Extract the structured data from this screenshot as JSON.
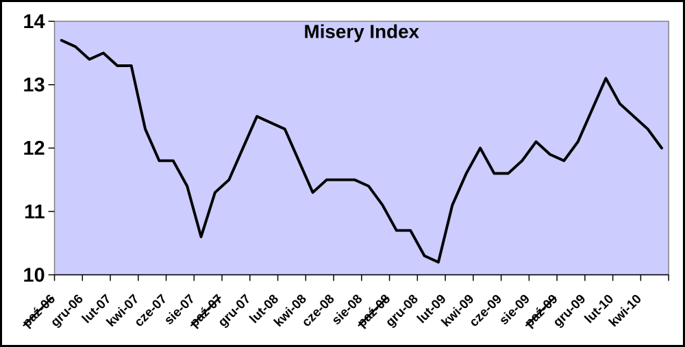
{
  "window": {
    "background_color": "#FFFFFF",
    "border_color": "#000000"
  },
  "chart_data": {
    "type": "line",
    "title": "Misery Index",
    "series_name": "Misery Index",
    "n_points": 44,
    "values": [
      13.7,
      13.6,
      13.4,
      13.5,
      13.3,
      13.3,
      12.3,
      11.8,
      11.8,
      11.4,
      10.6,
      11.3,
      11.5,
      12.0,
      12.5,
      12.4,
      12.3,
      11.8,
      11.3,
      11.5,
      11.5,
      11.5,
      11.4,
      11.1,
      10.7,
      10.7,
      10.3,
      10.2,
      11.1,
      11.6,
      12.0,
      11.6,
      11.6,
      11.8,
      12.1,
      11.9,
      11.8,
      12.1,
      12.6,
      13.1,
      12.7,
      12.5,
      12.3,
      12.0
    ],
    "x_tick_labels": [
      "paź-06",
      "gru-06",
      "lut-07",
      "kwi-07",
      "cze-07",
      "sie-07",
      "paź-07",
      "gru-07",
      "lut-08",
      "kwi-08",
      "cze-08",
      "sie-08",
      "paź-08",
      "gru-08",
      "lut-09",
      "kwi-09",
      "cze-09",
      "sie-09",
      "paź-09",
      "gru-09",
      "lut-10",
      "kwi-10"
    ],
    "strikethrough_tick_labels": [
      "paź-06",
      "paź-07",
      "paź-08",
      "paź-09"
    ],
    "points_per_tick": 2,
    "x_label_rotation_deg": 45,
    "ylim": [
      10,
      14
    ],
    "yticks": [
      10,
      11,
      12,
      13,
      14
    ],
    "grid": "off",
    "legend": "none",
    "line_color": "#000000",
    "plot_bg": "#CCCCFF",
    "plot_border": "#808080",
    "axis_color": "#000000"
  }
}
